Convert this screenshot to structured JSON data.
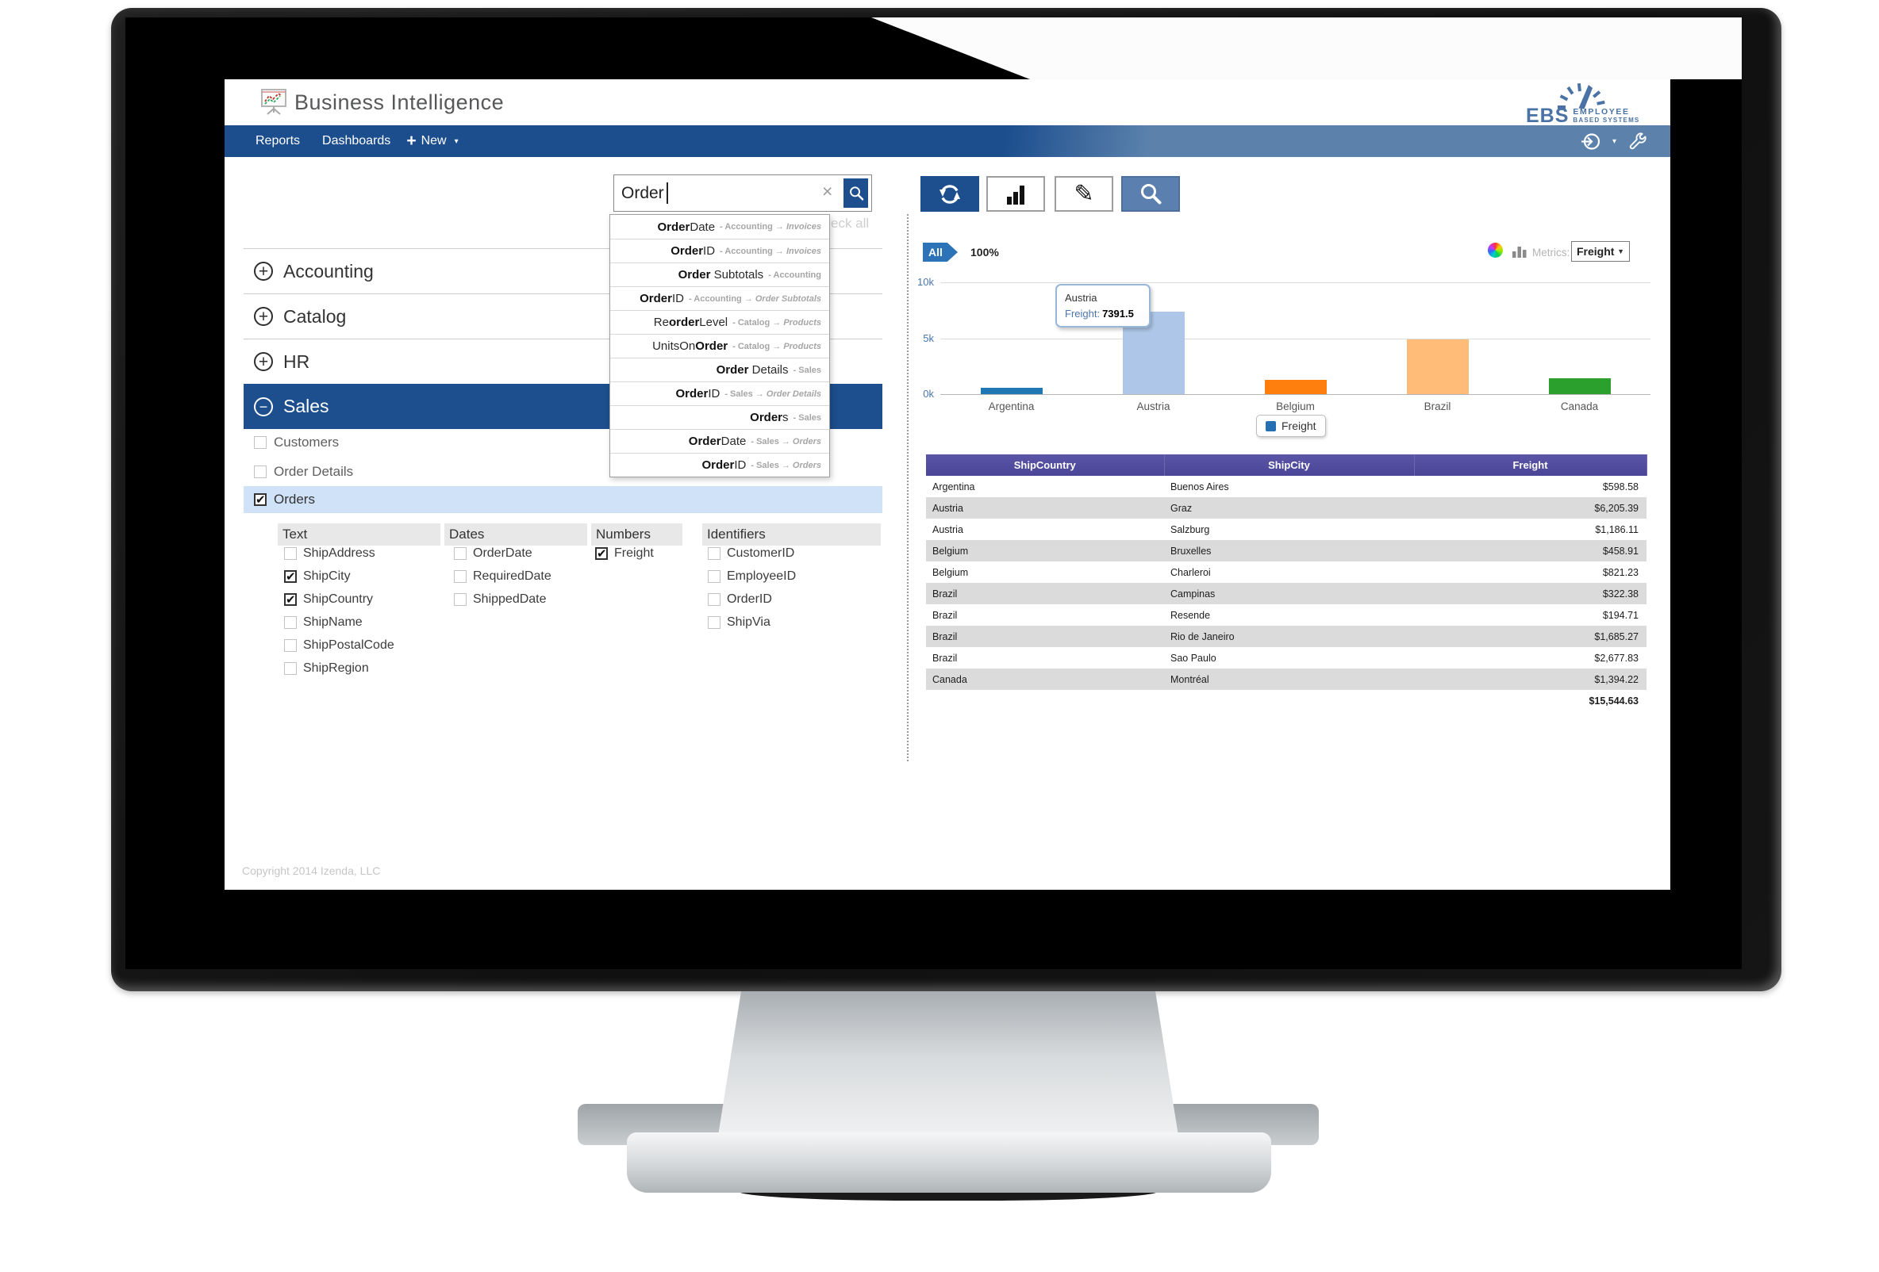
{
  "app": {
    "title": "Business Intelligence",
    "copyright": "Copyright 2014 Izenda, LLC"
  },
  "logo": {
    "name": "EBS",
    "tag1": "EMPLOYEE",
    "tag2": "BASED SYSTEMS"
  },
  "nav": {
    "reports": "Reports",
    "dashboards": "Dashboards",
    "plus": "+",
    "new": "New",
    "caret": "▾"
  },
  "search": {
    "value": "Order",
    "clear": "×",
    "check_all_partial": "eck all",
    "suggestions": [
      {
        "pre": "",
        "match": "Order",
        "post": "Date",
        "category": "Accounting",
        "table": "Invoices"
      },
      {
        "pre": "",
        "match": "Order",
        "post": "ID",
        "category": "Accounting",
        "table": "Invoices"
      },
      {
        "pre": "",
        "match": "Order",
        "post": " Subtotals",
        "category": "Accounting",
        "table": ""
      },
      {
        "pre": "",
        "match": "Order",
        "post": "ID",
        "category": "Accounting",
        "table": "Order Subtotals"
      },
      {
        "pre": "Re",
        "match": "order",
        "post": "Level",
        "category": "Catalog",
        "table": "Products"
      },
      {
        "pre": "UnitsOn",
        "match": "Order",
        "post": "",
        "category": "Catalog",
        "table": "Products"
      },
      {
        "pre": "",
        "match": "Order",
        "post": " Details",
        "category": "Sales",
        "table": ""
      },
      {
        "pre": "",
        "match": "Order",
        "post": "ID",
        "category": "Sales",
        "table": "Order Details"
      },
      {
        "pre": "",
        "match": "Order",
        "post": "s",
        "category": "Sales",
        "table": ""
      },
      {
        "pre": "",
        "match": "Order",
        "post": "Date",
        "category": "Sales",
        "table": "Orders"
      },
      {
        "pre": "",
        "match": "Order",
        "post": "ID",
        "category": "Sales",
        "table": "Orders"
      }
    ]
  },
  "tree": {
    "groups": [
      {
        "label": "Accounting"
      },
      {
        "label": "Catalog"
      },
      {
        "label": "HR"
      },
      {
        "label": "Sales"
      }
    ],
    "sales_children": [
      {
        "label": "Customers",
        "checked": false,
        "highlighted": false
      },
      {
        "label": "Order Details",
        "checked": false,
        "highlighted": false
      },
      {
        "label": "Orders",
        "checked": true,
        "highlighted": true
      }
    ],
    "field_groups": [
      {
        "label": "Text",
        "fields": [
          {
            "label": "ShipAddress",
            "checked": false
          },
          {
            "label": "ShipCity",
            "checked": true
          },
          {
            "label": "ShipCountry",
            "checked": true
          },
          {
            "label": "ShipName",
            "checked": false
          },
          {
            "label": "ShipPostalCode",
            "checked": false
          },
          {
            "label": "ShipRegion",
            "checked": false
          }
        ]
      },
      {
        "label": "Dates",
        "fields": [
          {
            "label": "OrderDate",
            "checked": false
          },
          {
            "label": "RequiredDate",
            "checked": false
          },
          {
            "label": "ShippedDate",
            "checked": false
          }
        ]
      },
      {
        "label": "Numbers",
        "fields": [
          {
            "label": "Freight",
            "checked": true
          }
        ]
      },
      {
        "label": "Identifiers",
        "fields": [
          {
            "label": "CustomerID",
            "checked": false
          },
          {
            "label": "EmployeeID",
            "checked": false
          },
          {
            "label": "OrderID",
            "checked": false
          },
          {
            "label": "ShipVia",
            "checked": false
          }
        ]
      }
    ]
  },
  "report": {
    "filter_badge": "All",
    "filter_percent": "100%",
    "metrics_label": "Metrics:",
    "metrics_value": "Freight",
    "metrics_caret": "▼",
    "tooltip": {
      "title": "Austria",
      "label": "Freight:",
      "value": "7391.5"
    },
    "legend_label": "Freight"
  },
  "chart_data": {
    "type": "bar",
    "categories": [
      "Argentina",
      "Austria",
      "Belgium",
      "Brazil",
      "Canada"
    ],
    "values": [
      598.58,
      7391.5,
      1280.14,
      4880.19,
      1394.22
    ],
    "colors": [
      "#1f77b4",
      "#aec7e8",
      "#ff7f0e",
      "#ffbb78",
      "#2ca02c"
    ],
    "title": "",
    "xlabel": "",
    "ylabel": "",
    "ylim": [
      0,
      10000
    ],
    "yticks": [
      {
        "label": "0k",
        "value": 0
      },
      {
        "label": "5k",
        "value": 5000
      },
      {
        "label": "10k",
        "value": 10000
      }
    ],
    "grid": true,
    "legend": [
      "Freight"
    ],
    "legend_position": "bottom"
  },
  "table": {
    "headers": [
      "ShipCountry",
      "ShipCity",
      "Freight"
    ],
    "rows": [
      [
        "Argentina",
        "Buenos Aires",
        "$598.58"
      ],
      [
        "Austria",
        "Graz",
        "$6,205.39"
      ],
      [
        "Austria",
        "Salzburg",
        "$1,186.11"
      ],
      [
        "Belgium",
        "Bruxelles",
        "$458.91"
      ],
      [
        "Belgium",
        "Charleroi",
        "$821.23"
      ],
      [
        "Brazil",
        "Campinas",
        "$322.38"
      ],
      [
        "Brazil",
        "Resende",
        "$194.71"
      ],
      [
        "Brazil",
        "Rio de Janeiro",
        "$1,685.27"
      ],
      [
        "Brazil",
        "Sao Paulo",
        "$2,677.83"
      ],
      [
        "Canada",
        "Montréal",
        "$1,394.22"
      ]
    ],
    "total": "$15,544.63"
  }
}
